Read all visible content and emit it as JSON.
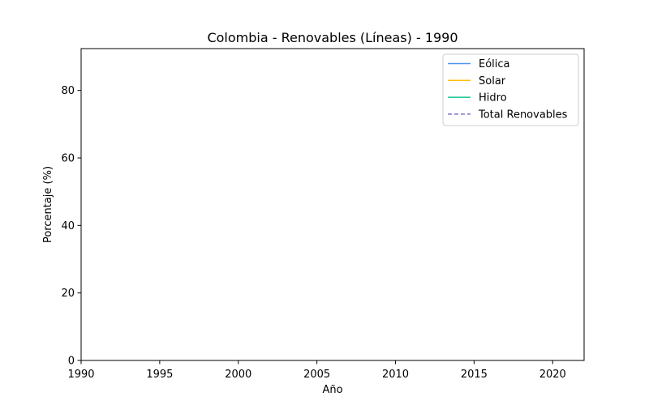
{
  "chart_data": {
    "type": "line",
    "title": "Colombia - Renovables (Líneas) - 1990",
    "xlabel": "Año",
    "ylabel": "Porcentaje (%)",
    "xlim": [
      1990,
      2022
    ],
    "ylim": [
      0,
      92.4
    ],
    "xticks": [
      1990,
      1995,
      2000,
      2005,
      2010,
      2015,
      2020
    ],
    "yticks": [
      0,
      20,
      40,
      60,
      80
    ],
    "grid": false,
    "legend_position": "top-right",
    "series": [
      {
        "name": "Eólica",
        "color": "#4e96ec",
        "dash": "solid",
        "x": [],
        "y": []
      },
      {
        "name": "Solar",
        "color": "#fdbd10",
        "dash": "solid",
        "x": [],
        "y": []
      },
      {
        "name": "Hidro",
        "color": "#12c290",
        "dash": "solid",
        "x": [],
        "y": []
      },
      {
        "name": "Total Renovables",
        "color": "#7b71c9",
        "dash": "dashed",
        "x": [],
        "y": []
      }
    ]
  }
}
